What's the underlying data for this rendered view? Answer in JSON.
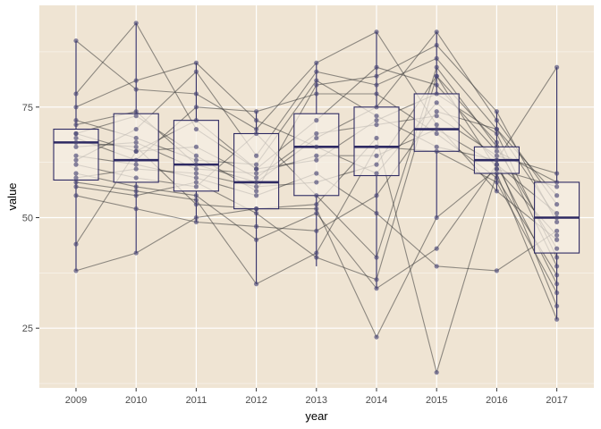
{
  "chart_data": {
    "type": "boxplot",
    "overlay": [
      "jittered-points",
      "connecting-lines"
    ],
    "xlabel": "year",
    "ylabel": "value",
    "categories": [
      "2009",
      "2010",
      "2011",
      "2012",
      "2013",
      "2014",
      "2015",
      "2016",
      "2017"
    ],
    "ylim": [
      11.5,
      98
    ],
    "yticks": [
      25,
      50,
      75
    ],
    "grid": true,
    "colors": {
      "panel_bg": "#efe4d3",
      "box_fill": "#f7efe6",
      "box_stroke": "#2e2a63",
      "median": "#2e2a63",
      "point": "#4a4775",
      "line": "#3a3a3a"
    },
    "boxes": [
      {
        "x": "2009",
        "q1": 58.5,
        "median": 67,
        "q3": 70,
        "whisker_low": 38,
        "whisker_high": 90
      },
      {
        "x": "2010",
        "q1": 58,
        "median": 63,
        "q3": 73.5,
        "whisker_low": 42,
        "whisker_high": 94
      },
      {
        "x": "2011",
        "q1": 56,
        "median": 62,
        "q3": 72,
        "whisker_low": 49,
        "whisker_high": 85
      },
      {
        "x": "2012",
        "q1": 52,
        "median": 58,
        "q3": 69,
        "whisker_low": 35,
        "whisker_high": 74
      },
      {
        "x": "2013",
        "q1": 55,
        "median": 66,
        "q3": 73.5,
        "whisker_low": 39,
        "whisker_high": 85
      },
      {
        "x": "2014",
        "q1": 59.5,
        "median": 66,
        "q3": 75,
        "whisker_low": 34,
        "whisker_high": 92
      },
      {
        "x": "2015",
        "q1": 65,
        "median": 70,
        "q3": 78,
        "whisker_low": 50,
        "whisker_high": 92
      },
      {
        "x": "2016",
        "q1": 60,
        "median": 63,
        "q3": 66,
        "whisker_low": 56,
        "whisker_high": 74
      },
      {
        "x": "2017",
        "q1": 42,
        "median": 50,
        "q3": 58,
        "whisker_low": 27,
        "whisker_high": 84
      }
    ],
    "series": [
      {
        "values": [
          90,
          79,
          78,
          70,
          85,
          92,
          71,
          56,
          45
        ]
      },
      {
        "values": [
          78,
          94,
          70,
          61,
          72,
          84,
          80,
          65,
          58
        ]
      },
      {
        "values": [
          75,
          81,
          85,
          72,
          66,
          60,
          76,
          63,
          30
        ]
      },
      {
        "values": [
          71,
          74,
          62,
          58,
          68,
          75,
          92,
          72,
          53
        ]
      },
      {
        "values": [
          69,
          73,
          64,
          56,
          80,
          82,
          89,
          74,
          49
        ]
      },
      {
        "values": [
          67,
          66,
          53,
          52,
          52,
          23,
          50,
          61,
          57
        ]
      },
      {
        "values": [
          64,
          62,
          59,
          55,
          60,
          51,
          39,
          38,
          47
        ]
      },
      {
        "values": [
          62,
          59,
          57,
          69,
          55,
          41,
          84,
          66,
          43
        ]
      },
      {
        "values": [
          60,
          57,
          55,
          45,
          51,
          34,
          43,
          62,
          35
        ]
      },
      {
        "values": [
          58,
          56,
          54,
          35,
          42,
          66,
          65,
          58,
          33
        ]
      },
      {
        "values": [
          55,
          52,
          49,
          48,
          47,
          55,
          74,
          70,
          50
        ]
      },
      {
        "values": [
          44,
          65,
          72,
          61,
          63,
          72,
          78,
          69,
          41
        ]
      },
      {
        "values": [
          38,
          42,
          50,
          52,
          53,
          68,
          15,
          60,
          27
        ]
      },
      {
        "values": [
          68,
          63,
          75,
          74,
          78,
          78,
          69,
          59,
          37
        ]
      },
      {
        "values": [
          66,
          67,
          61,
          60,
          64,
          64,
          70,
          62,
          51
        ]
      },
      {
        "values": [
          59,
          61,
          60,
          57,
          58,
          62,
          82,
          67,
          39
        ]
      },
      {
        "values": [
          63,
          70,
          83,
          64,
          83,
          80,
          86,
          70,
          55
        ]
      },
      {
        "values": [
          69,
          65,
          66,
          59,
          69,
          71,
          73,
          64,
          60
        ]
      },
      {
        "values": [
          72,
          68,
          63,
          62,
          81,
          73,
          66,
          63,
          84
        ]
      },
      {
        "values": [
          57,
          55,
          58,
          51,
          41,
          36,
          82,
          61,
          46
        ]
      }
    ]
  }
}
